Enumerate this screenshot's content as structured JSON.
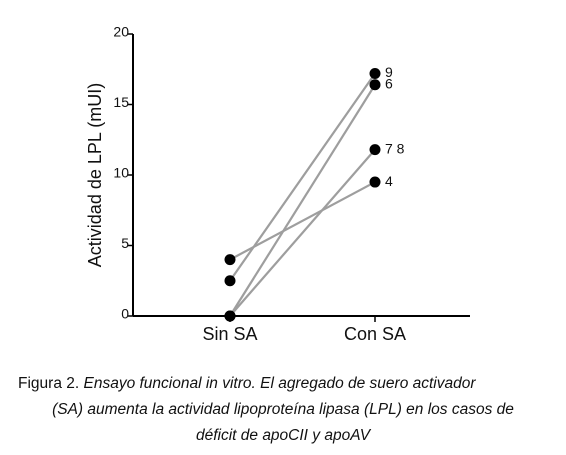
{
  "chart_data": {
    "type": "line",
    "ylabel": "Actividad de LPL (mUI)",
    "categories": [
      "Sin SA",
      "Con SA"
    ],
    "series": [
      {
        "name": "9",
        "color": "#9e9e9e",
        "values": [
          2.5,
          17.2
        ]
      },
      {
        "name": "6",
        "color": "#9e9e9e",
        "values": [
          0,
          16.4
        ]
      },
      {
        "name": "7 8",
        "color": "#9e9e9e",
        "values": [
          0,
          11.8
        ]
      },
      {
        "name": "4",
        "color": "#9e9e9e",
        "values": [
          4,
          9.5
        ]
      }
    ],
    "marker_color": "#000000",
    "ylim": [
      0,
      20
    ],
    "yticks": [
      0,
      5,
      10,
      15,
      20
    ]
  },
  "caption": {
    "label": "Figura 2.",
    "lines": [
      "Ensayo funcional in vitro. El agregado de suero activador",
      "(SA) aumenta la actividad lipoproteína lipasa (LPL) en los casos de",
      "déficit de apoCII y apoAV"
    ]
  }
}
